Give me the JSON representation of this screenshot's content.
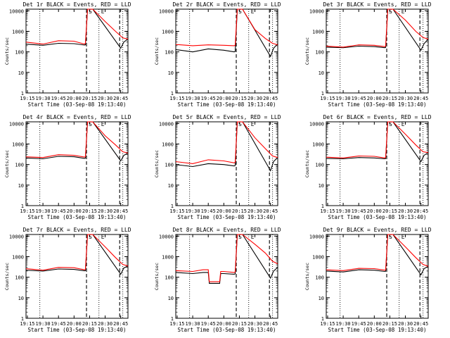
{
  "figure": {
    "x_tick_labels": [
      "19:15",
      "19:30",
      "19:45",
      "20:00",
      "20:15",
      "20:30",
      "20:45"
    ],
    "y_tick_labels": [
      "1",
      "10",
      "100",
      "1000",
      "10000"
    ],
    "xlabel": "Start Time (03-Sep-08 19:13:40)",
    "ylabel": "Counts/sec",
    "event_markers": [
      "S",
      "E"
    ],
    "colors": {
      "events": "#000000",
      "lld": "#ff0000"
    }
  },
  "chart_data": [
    {
      "type": "line",
      "title": "Det 1r BLACK = Events, RED = LLD",
      "xlabel": "Start Time (03-Sep-08 19:13:40)",
      "ylabel": "Counts/sec",
      "y_scale": "log",
      "ylim": [
        1,
        12000
      ],
      "xlim": [
        "19:13:40",
        "20:52:00"
      ],
      "series": [
        {
          "color": "#000000",
          "x": [
            "19:13",
            "19:30",
            "19:45",
            "20:00",
            "20:10",
            "20:11",
            "20:13",
            "20:16",
            "20:18",
            "20:45",
            "20:48",
            "20:52"
          ],
          "y": [
            240,
            210,
            260,
            250,
            215,
            220,
            12000,
            12000,
            12000,
            150,
            300,
            420
          ]
        },
        {
          "color": "#ff0000",
          "x": [
            "19:13",
            "19:30",
            "19:45",
            "20:00",
            "20:10",
            "20:11",
            "20:13",
            "20:16",
            "20:18",
            "20:30",
            "20:40",
            "20:47",
            "20:52"
          ],
          "y": [
            300,
            240,
            350,
            330,
            240,
            260,
            12000,
            12000,
            12000,
            3000,
            1000,
            480,
            420
          ]
        }
      ],
      "vlines": [
        {
          "x": "19:27",
          "style": "dotted"
        },
        {
          "x": "20:12",
          "style": "dashed"
        },
        {
          "x": "20:24",
          "style": "dotted"
        },
        {
          "x": "20:44",
          "style": "dashed"
        },
        {
          "x": "20:47",
          "style": "dotted"
        }
      ]
    },
    {
      "type": "line",
      "title": "Det 2r BLACK = Events, RED = LLD",
      "xlabel": "Start Time (03-Sep-08 19:13:40)",
      "ylabel": "Counts/sec",
      "y_scale": "log",
      "ylim": [
        1,
        12000
      ],
      "xlim": [
        "19:13:40",
        "20:52:00"
      ],
      "series": [
        {
          "color": "#000000",
          "x": [
            "19:13",
            "19:30",
            "19:45",
            "20:00",
            "20:10",
            "20:11",
            "20:13",
            "20:16",
            "20:18",
            "20:45",
            "20:48",
            "20:52"
          ],
          "y": [
            130,
            100,
            140,
            120,
            100,
            105,
            12000,
            12000,
            12000,
            60,
            150,
            250
          ]
        },
        {
          "color": "#ff0000",
          "x": [
            "19:13",
            "19:30",
            "19:45",
            "20:00",
            "20:10",
            "20:11",
            "20:13",
            "20:16",
            "20:18",
            "20:30",
            "20:40",
            "20:47",
            "20:52"
          ],
          "y": [
            230,
            200,
            220,
            210,
            200,
            210,
            12000,
            12000,
            12000,
            1200,
            450,
            260,
            220
          ]
        }
      ],
      "vlines": [
        {
          "x": "19:27",
          "style": "dotted"
        },
        {
          "x": "20:12",
          "style": "dashed"
        },
        {
          "x": "20:24",
          "style": "dotted"
        },
        {
          "x": "20:44",
          "style": "dashed"
        },
        {
          "x": "20:47",
          "style": "dotted"
        }
      ]
    },
    {
      "type": "line",
      "title": "Det 3r BLACK = Events, RED = LLD",
      "xlabel": "Start Time (03-Sep-08 19:13:40)",
      "ylabel": "Counts/sec",
      "y_scale": "log",
      "ylim": [
        1,
        12000
      ],
      "xlim": [
        "19:13:40",
        "20:52:00"
      ],
      "series": [
        {
          "color": "#000000",
          "x": [
            "19:13",
            "19:30",
            "19:45",
            "20:00",
            "20:10",
            "20:11",
            "20:13",
            "20:16",
            "20:18",
            "20:45",
            "20:48",
            "20:52"
          ],
          "y": [
            170,
            160,
            190,
            180,
            160,
            165,
            12000,
            12000,
            12000,
            120,
            250,
            420
          ]
        },
        {
          "color": "#ff0000",
          "x": [
            "19:13",
            "19:30",
            "19:45",
            "20:00",
            "20:10",
            "20:11",
            "20:13",
            "20:16",
            "20:18",
            "20:30",
            "20:40",
            "20:47",
            "20:52"
          ],
          "y": [
            190,
            170,
            220,
            210,
            180,
            190,
            12000,
            12000,
            12000,
            3500,
            1000,
            500,
            420
          ]
        }
      ],
      "vlines": [
        {
          "x": "19:27",
          "style": "dotted"
        },
        {
          "x": "20:12",
          "style": "dashed"
        },
        {
          "x": "20:24",
          "style": "dotted"
        },
        {
          "x": "20:44",
          "style": "dashed"
        },
        {
          "x": "20:47",
          "style": "dotted"
        }
      ]
    },
    {
      "type": "line",
      "title": "Det 4r BLACK = Events, RED = LLD",
      "xlabel": "Start Time (03-Sep-08 19:13:40)",
      "ylabel": "Counts/sec",
      "y_scale": "log",
      "ylim": [
        1,
        12000
      ],
      "xlim": [
        "19:13:40",
        "20:52:00"
      ],
      "series": [
        {
          "color": "#000000",
          "x": [
            "19:13",
            "19:30",
            "19:45",
            "20:00",
            "20:10",
            "20:11",
            "20:13",
            "20:16",
            "20:18",
            "20:45",
            "20:48",
            "20:52"
          ],
          "y": [
            210,
            190,
            250,
            240,
            200,
            205,
            12000,
            12000,
            12000,
            150,
            280,
            360
          ]
        },
        {
          "color": "#ff0000",
          "x": [
            "19:13",
            "19:30",
            "19:45",
            "20:00",
            "20:10",
            "20:11",
            "20:13",
            "20:16",
            "20:18",
            "20:30",
            "20:40",
            "20:47",
            "20:52"
          ],
          "y": [
            240,
            220,
            300,
            280,
            230,
            240,
            12000,
            12000,
            12000,
            2500,
            900,
            420,
            360
          ]
        }
      ],
      "vlines": [
        {
          "x": "19:27",
          "style": "dotted"
        },
        {
          "x": "20:12",
          "style": "dashed"
        },
        {
          "x": "20:24",
          "style": "dotted"
        },
        {
          "x": "20:44",
          "style": "dashed"
        },
        {
          "x": "20:47",
          "style": "dotted"
        }
      ]
    },
    {
      "type": "line",
      "title": "Det 5r BLACK = Events, RED = LLD",
      "xlabel": "Start Time (03-Sep-08 19:13:40)",
      "ylabel": "Counts/sec",
      "y_scale": "log",
      "ylim": [
        1,
        12000
      ],
      "xlim": [
        "19:13:40",
        "20:52:00"
      ],
      "series": [
        {
          "color": "#000000",
          "x": [
            "19:13",
            "19:30",
            "19:45",
            "20:00",
            "20:10",
            "20:11",
            "20:13",
            "20:16",
            "20:18",
            "20:45",
            "20:48",
            "20:52"
          ],
          "y": [
            100,
            80,
            110,
            100,
            85,
            90,
            12000,
            12000,
            12000,
            50,
            140,
            220
          ]
        },
        {
          "color": "#ff0000",
          "x": [
            "19:13",
            "19:30",
            "19:45",
            "20:00",
            "20:10",
            "20:11",
            "20:13",
            "20:16",
            "20:18",
            "20:30",
            "20:40",
            "20:47",
            "20:52"
          ],
          "y": [
            140,
            110,
            170,
            150,
            120,
            130,
            12000,
            12000,
            12000,
            2000,
            600,
            260,
            220
          ]
        }
      ],
      "vlines": [
        {
          "x": "19:27",
          "style": "dotted"
        },
        {
          "x": "20:12",
          "style": "dashed"
        },
        {
          "x": "20:24",
          "style": "dotted"
        },
        {
          "x": "20:44",
          "style": "dashed"
        },
        {
          "x": "20:47",
          "style": "dotted"
        }
      ]
    },
    {
      "type": "line",
      "title": "Det 6r BLACK = Events, RED = LLD",
      "xlabel": "Start Time (03-Sep-08 19:13:40)",
      "ylabel": "Counts/sec",
      "y_scale": "log",
      "ylim": [
        1,
        12000
      ],
      "xlim": [
        "19:13:40",
        "20:52:00"
      ],
      "series": [
        {
          "color": "#000000",
          "x": [
            "19:13",
            "19:30",
            "19:45",
            "20:00",
            "20:10",
            "20:11",
            "20:13",
            "20:16",
            "20:18",
            "20:45",
            "20:48",
            "20:52"
          ],
          "y": [
            200,
            190,
            220,
            210,
            190,
            195,
            12000,
            12000,
            12000,
            140,
            280,
            380
          ]
        },
        {
          "color": "#ff0000",
          "x": [
            "19:13",
            "19:30",
            "19:45",
            "20:00",
            "20:10",
            "20:11",
            "20:13",
            "20:16",
            "20:18",
            "20:30",
            "20:40",
            "20:47",
            "20:52"
          ],
          "y": [
            230,
            210,
            260,
            250,
            210,
            220,
            12000,
            12000,
            12000,
            3000,
            900,
            420,
            380
          ]
        }
      ],
      "vlines": [
        {
          "x": "19:27",
          "style": "dotted"
        },
        {
          "x": "20:12",
          "style": "dashed"
        },
        {
          "x": "20:24",
          "style": "dotted"
        },
        {
          "x": "20:44",
          "style": "dashed"
        },
        {
          "x": "20:47",
          "style": "dotted"
        }
      ]
    },
    {
      "type": "line",
      "title": "Det 7r BLACK = Events, RED = LLD",
      "xlabel": "Start Time (03-Sep-08 19:13:40)",
      "ylabel": "Counts/sec",
      "y_scale": "log",
      "ylim": [
        1,
        12000
      ],
      "xlim": [
        "19:13:40",
        "20:52:00"
      ],
      "series": [
        {
          "color": "#000000",
          "x": [
            "19:13",
            "19:30",
            "19:45",
            "20:00",
            "20:10",
            "20:11",
            "20:13",
            "20:16",
            "20:18",
            "20:45",
            "20:48",
            "20:52"
          ],
          "y": [
            220,
            200,
            250,
            240,
            205,
            210,
            12000,
            12000,
            12000,
            140,
            280,
            350
          ]
        },
        {
          "color": "#ff0000",
          "x": [
            "19:13",
            "19:30",
            "19:45",
            "20:00",
            "20:10",
            "20:11",
            "20:13",
            "20:16",
            "20:18",
            "20:30",
            "20:40",
            "20:47",
            "20:52"
          ],
          "y": [
            260,
            220,
            300,
            290,
            230,
            240,
            12000,
            12000,
            12000,
            3000,
            900,
            420,
            350
          ]
        }
      ],
      "vlines": [
        {
          "x": "19:27",
          "style": "dotted"
        },
        {
          "x": "20:12",
          "style": "dashed"
        },
        {
          "x": "20:24",
          "style": "dotted"
        },
        {
          "x": "20:44",
          "style": "dashed"
        },
        {
          "x": "20:47",
          "style": "dotted"
        }
      ]
    },
    {
      "type": "line",
      "title": "Det 8r BLACK = Events, RED = LLD",
      "xlabel": "Start Time (03-Sep-08 19:13:40)",
      "ylabel": "Counts/sec",
      "y_scale": "log",
      "ylim": [
        1,
        12000
      ],
      "xlim": [
        "19:13:40",
        "20:52:00"
      ],
      "series": [
        {
          "color": "#000000",
          "x": [
            "19:13",
            "19:30",
            "19:40",
            "19:45",
            "19:46",
            "19:56",
            "19:57",
            "20:00",
            "20:10",
            "20:11",
            "20:13",
            "20:16",
            "20:18",
            "20:45",
            "20:48",
            "20:52"
          ],
          "y": [
            170,
            150,
            170,
            170,
            50,
            50,
            150,
            150,
            140,
            145,
            12000,
            12000,
            12000,
            90,
            200,
            300
          ]
        },
        {
          "color": "#ff0000",
          "x": [
            "19:13",
            "19:30",
            "19:40",
            "19:45",
            "19:46",
            "19:56",
            "19:57",
            "20:00",
            "20:10",
            "20:11",
            "20:13",
            "20:16",
            "20:18",
            "20:30",
            "20:40",
            "20:47",
            "20:52"
          ],
          "y": [
            210,
            190,
            230,
            230,
            60,
            60,
            190,
            190,
            170,
            180,
            12000,
            12000,
            12000,
            4000,
            1500,
            600,
            450
          ]
        }
      ],
      "vlines": [
        {
          "x": "19:27",
          "style": "dotted"
        },
        {
          "x": "20:12",
          "style": "dashed"
        },
        {
          "x": "20:24",
          "style": "dotted"
        },
        {
          "x": "20:44",
          "style": "dashed"
        },
        {
          "x": "20:47",
          "style": "dotted"
        }
      ]
    },
    {
      "type": "line",
      "title": "Det 9r BLACK = Events, RED = LLD",
      "xlabel": "Start Time (03-Sep-08 19:13:40)",
      "ylabel": "Counts/sec",
      "y_scale": "log",
      "ylim": [
        1,
        12000
      ],
      "xlim": [
        "19:13:40",
        "20:52:00"
      ],
      "series": [
        {
          "color": "#000000",
          "x": [
            "19:13",
            "19:30",
            "19:45",
            "20:00",
            "20:10",
            "20:11",
            "20:13",
            "20:16",
            "20:18",
            "20:45",
            "20:48",
            "20:52"
          ],
          "y": [
            200,
            180,
            230,
            220,
            190,
            195,
            12000,
            12000,
            12000,
            130,
            260,
            340
          ]
        },
        {
          "color": "#ff0000",
          "x": [
            "19:13",
            "19:30",
            "19:45",
            "20:00",
            "20:10",
            "20:11",
            "20:13",
            "20:16",
            "20:18",
            "20:30",
            "20:40",
            "20:47",
            "20:52"
          ],
          "y": [
            230,
            210,
            270,
            260,
            220,
            230,
            12000,
            12000,
            12000,
            3000,
            900,
            420,
            340
          ]
        }
      ],
      "vlines": [
        {
          "x": "19:27",
          "style": "dotted"
        },
        {
          "x": "20:12",
          "style": "dashed"
        },
        {
          "x": "20:24",
          "style": "dotted"
        },
        {
          "x": "20:44",
          "style": "dashed"
        },
        {
          "x": "20:47",
          "style": "dotted"
        }
      ]
    }
  ]
}
